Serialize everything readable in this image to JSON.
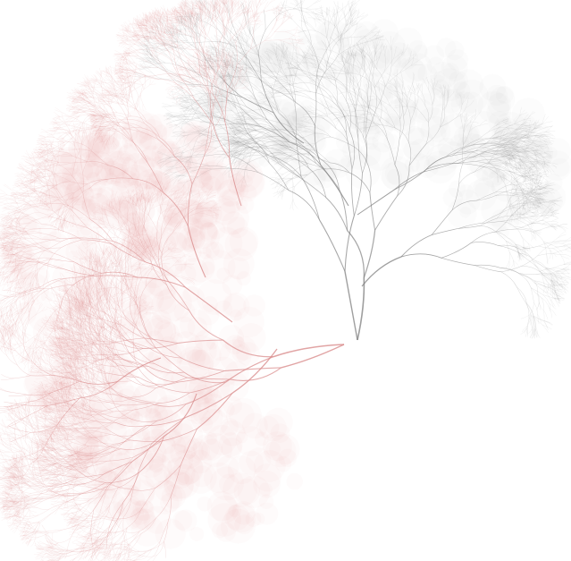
{
  "colors": {
    "background": "#ffffff",
    "gray_tree": "#7a7a7a",
    "red_tree": "#d98a8a"
  },
  "trees": [
    {
      "name": "gray-tree",
      "color_key": "gray_tree"
    },
    {
      "name": "red-tree",
      "color_key": "red_tree"
    }
  ]
}
